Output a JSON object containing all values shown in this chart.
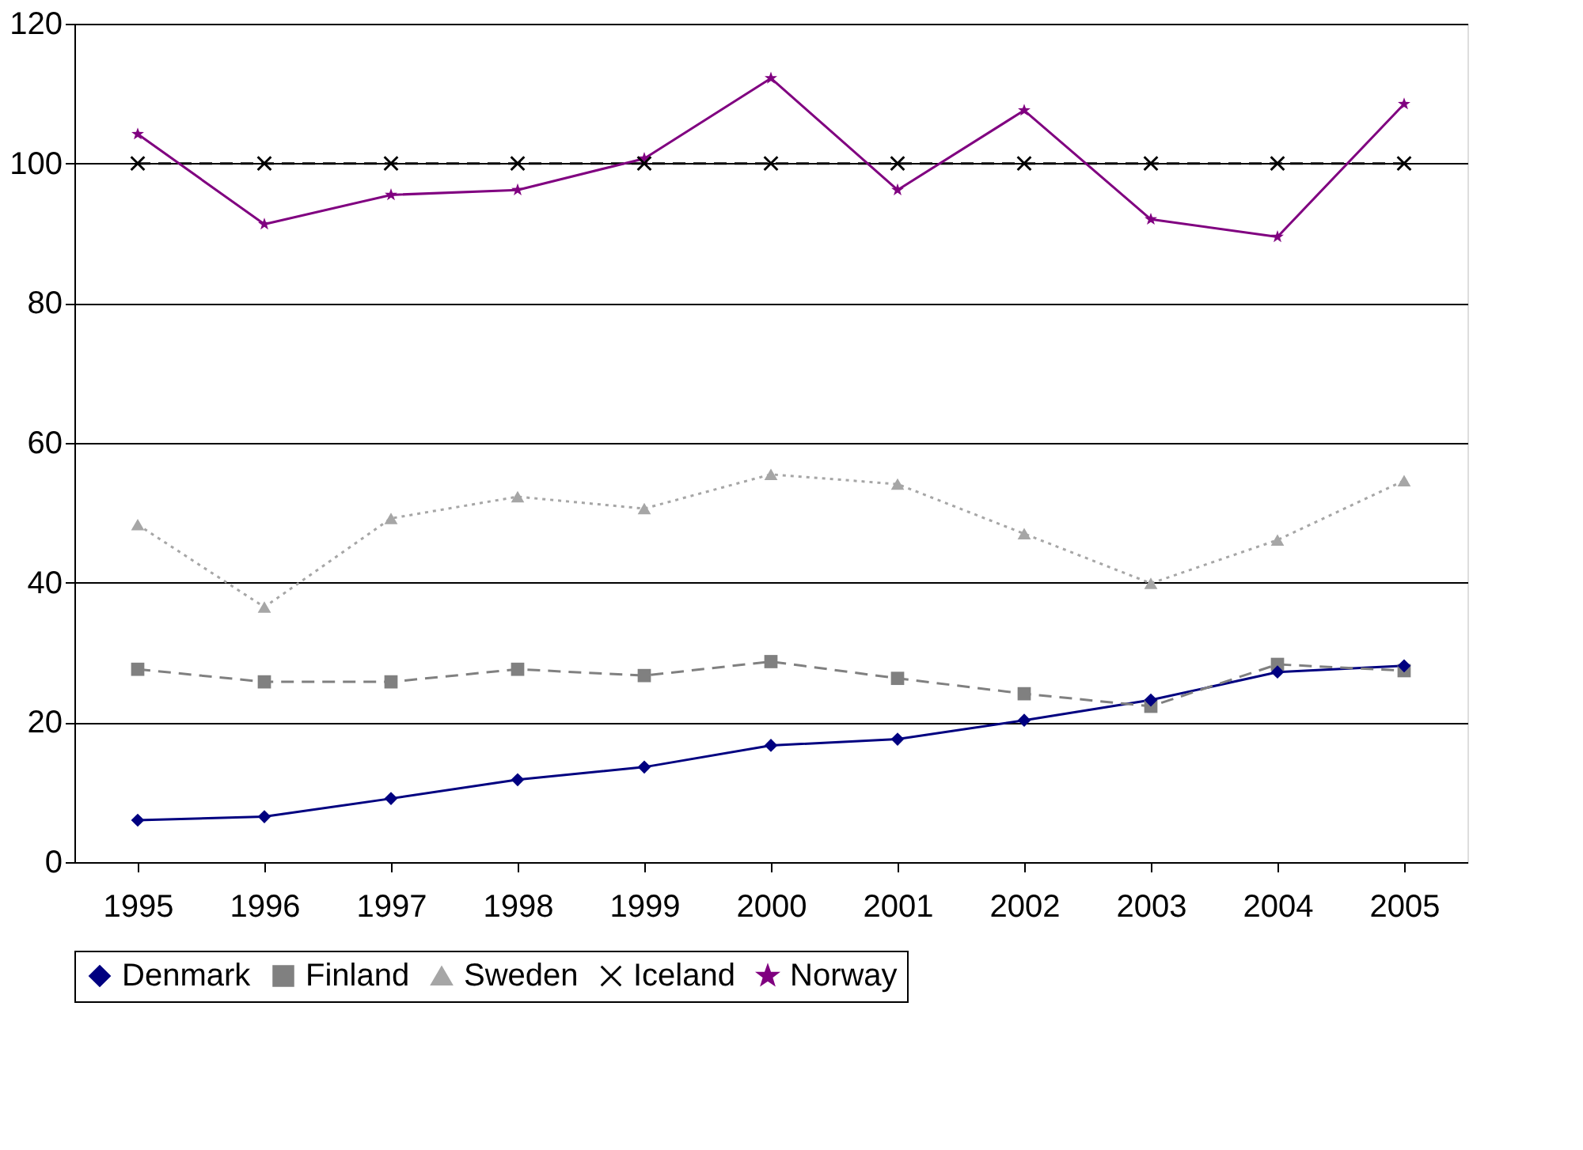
{
  "chart_data": {
    "type": "line",
    "categories": [
      "1995",
      "1996",
      "1997",
      "1998",
      "1999",
      "2000",
      "2001",
      "2002",
      "2003",
      "2004",
      "2005"
    ],
    "ylim": [
      0,
      120
    ],
    "yticks": [
      0,
      20,
      40,
      60,
      80,
      100,
      120
    ],
    "grid": "y",
    "legend": "bottom",
    "series": [
      {
        "name": "Denmark",
        "color": "#000080",
        "marker": "diamond",
        "line_style": "solid",
        "values": [
          6.0,
          6.5,
          9.1,
          11.8,
          13.6,
          16.7,
          17.6,
          20.3,
          23.2,
          27.2,
          28.1
        ]
      },
      {
        "name": "Finland",
        "color": "#808080",
        "marker": "square",
        "line_style": "dashed",
        "values": [
          27.6,
          25.8,
          25.8,
          27.6,
          26.7,
          28.7,
          26.3,
          24.1,
          22.3,
          28.3,
          27.4
        ]
      },
      {
        "name": "Sweden",
        "color": "#a6a6a6",
        "marker": "triangle",
        "line_style": "dotted",
        "values": [
          48.3,
          36.5,
          49.2,
          52.3,
          50.6,
          55.5,
          54.1,
          47.0,
          39.9,
          46.1,
          54.6
        ]
      },
      {
        "name": "Iceland",
        "color": "#000000",
        "marker": "cross",
        "line_style": "dashed",
        "values": [
          100,
          100,
          100,
          100,
          100,
          100,
          100,
          100,
          100,
          100,
          100
        ]
      },
      {
        "name": "Norway",
        "color": "#800080",
        "marker": "star",
        "line_style": "solid",
        "values": [
          104.2,
          91.3,
          95.5,
          96.2,
          100.7,
          112.2,
          96.2,
          107.6,
          92.0,
          89.5,
          108.5
        ]
      }
    ]
  }
}
